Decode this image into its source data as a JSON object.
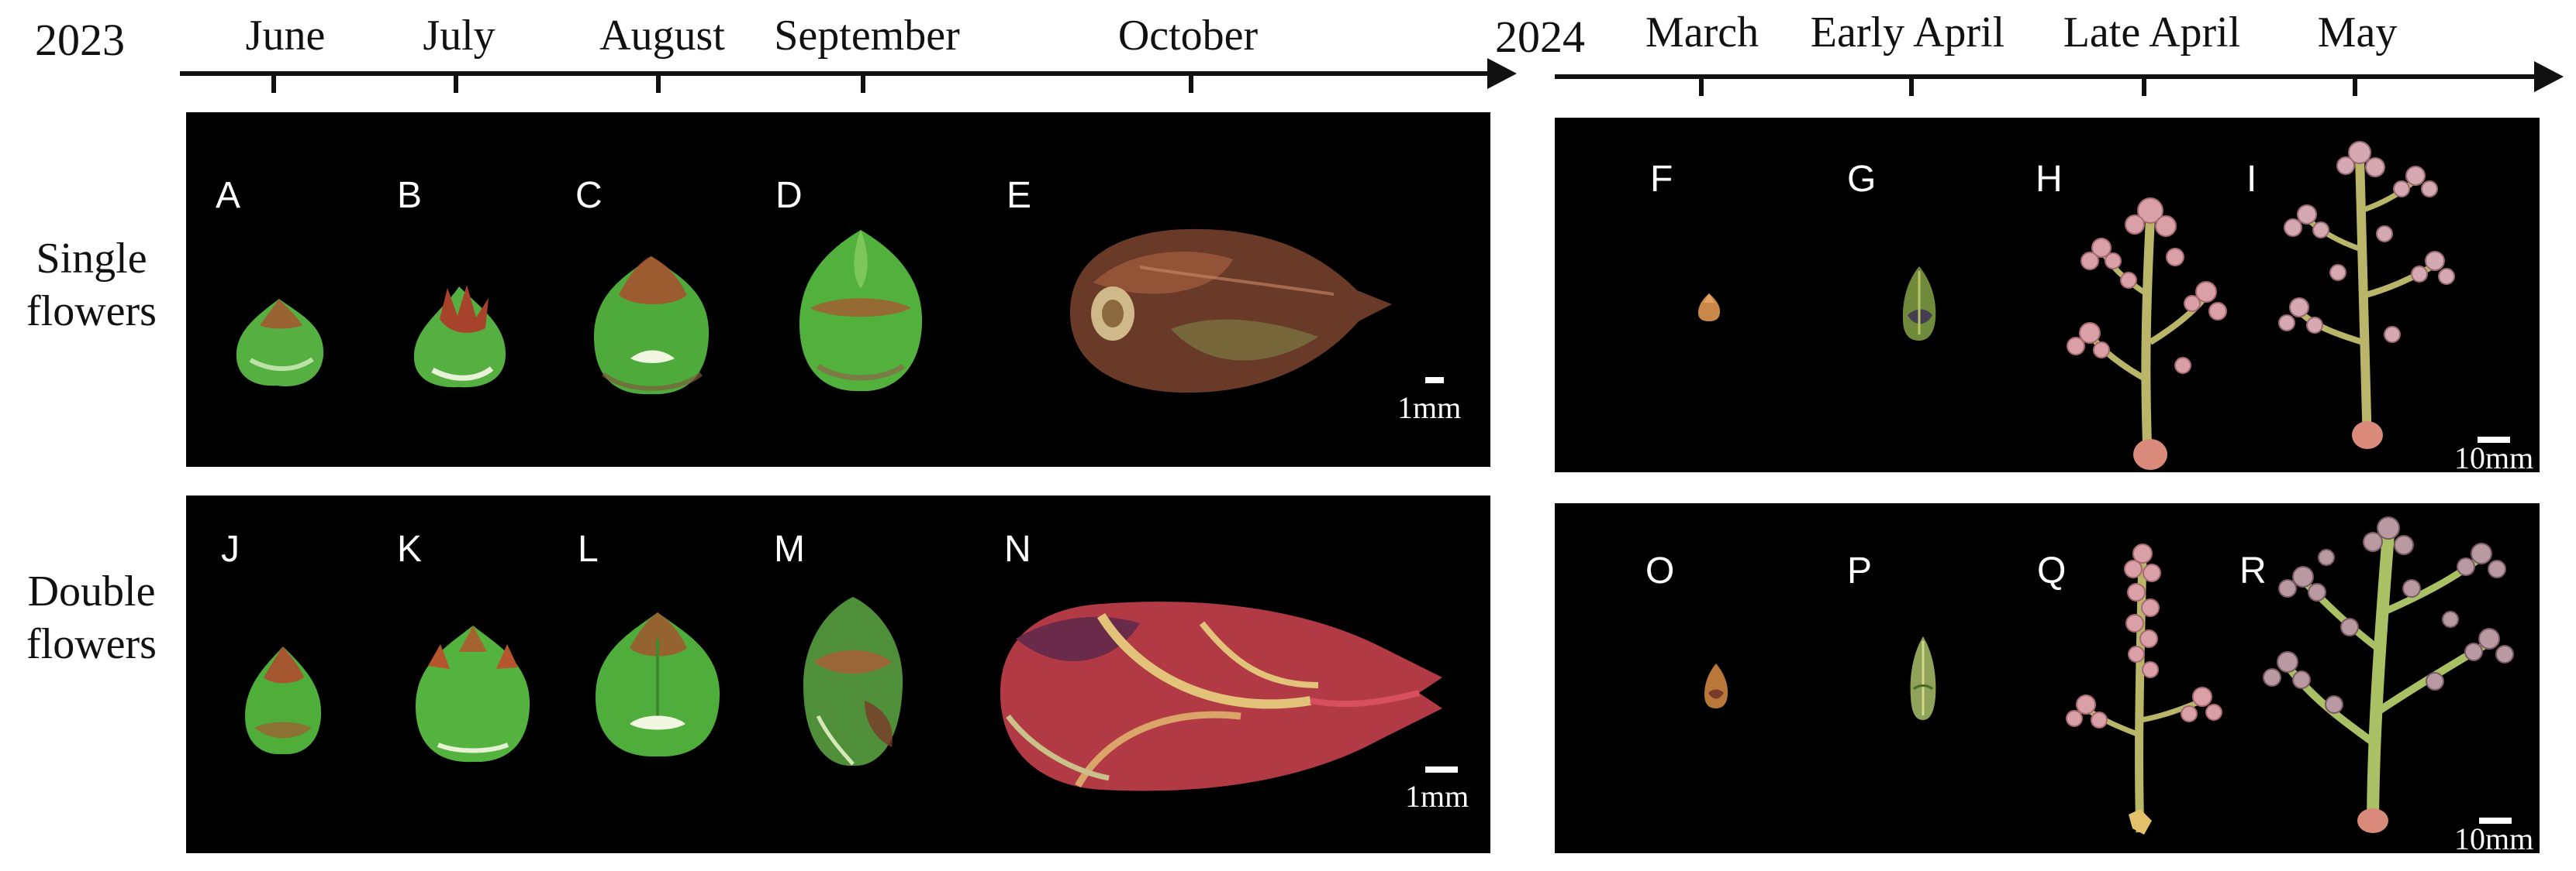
{
  "timeline": {
    "years": [
      "2023",
      "2024"
    ],
    "months_2023": [
      "June",
      "July",
      "August",
      "September",
      "October"
    ],
    "months_2024": [
      "March",
      "Early April",
      "Late April",
      "May"
    ]
  },
  "rows": {
    "single_line1": "Single",
    "single_line2": "flowers",
    "double_line1": "Double",
    "double_line2": "flowers"
  },
  "panels": {
    "letters": [
      "A",
      "B",
      "C",
      "D",
      "E",
      "F",
      "G",
      "H",
      "I",
      "J",
      "K",
      "L",
      "M",
      "N",
      "O",
      "P",
      "Q",
      "R"
    ],
    "scale_small": "1mm",
    "scale_large": "10mm"
  },
  "colors": {
    "panel_bg": "#000000",
    "bud_green": "#4fae3a",
    "bud_red": "#9c3b2a",
    "inflorescence_pink": "#d9a0a8",
    "stem_yellowgreen": "#b9b66a"
  }
}
